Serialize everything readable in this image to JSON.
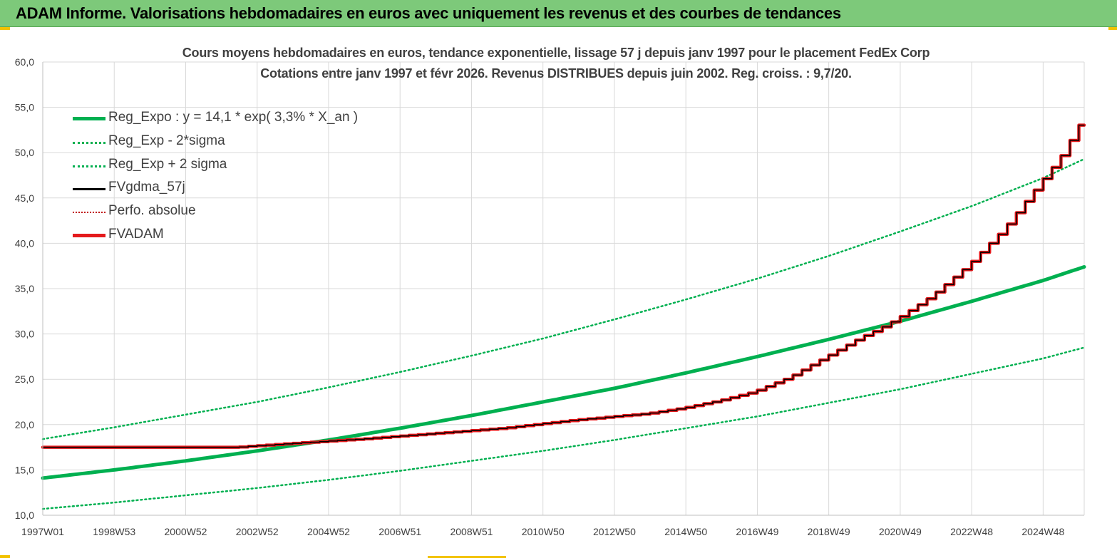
{
  "header": {
    "title": "ADAM Informe. Valorisations hebdomadaires en euros avec uniquement les revenus et des courbes de tendances"
  },
  "colors": {
    "banner_bg": "#7dc97a",
    "reg_expo": "#00b050",
    "fvadam": "#e41a1c",
    "fvgdma": "#000000",
    "perfo": "#c00000",
    "grid": "#d9d9d9",
    "accent": "#f2c200"
  },
  "chart_data": {
    "type": "line",
    "title_line1": "Cours moyens hebdomadaires en euros, tendance exponentielle, lissage 57 j depuis janv 1997 pour le placement FedEx Corp",
    "title_line2": "Cotations entre janv 1997 et févr 2026. Revenus DISTRIBUES depuis juin 2002. Reg. croiss. : 9,7/20.",
    "xlabel": "",
    "ylabel": "",
    "ylim": [
      10,
      60
    ],
    "y_ticks": [
      "10,0",
      "15,0",
      "20,0",
      "25,0",
      "30,0",
      "35,0",
      "40,0",
      "45,0",
      "50,0",
      "55,0",
      "60,0"
    ],
    "x_range": [
      1997.0,
      2026.15
    ],
    "x_ticks": [
      {
        "label": "1997W01",
        "x": 1997.0
      },
      {
        "label": "1998W53",
        "x": 1999.0
      },
      {
        "label": "2000W52",
        "x": 2001.0
      },
      {
        "label": "2002W52",
        "x": 2003.0
      },
      {
        "label": "2004W52",
        "x": 2005.0
      },
      {
        "label": "2006W51",
        "x": 2007.0
      },
      {
        "label": "2008W51",
        "x": 2009.0
      },
      {
        "label": "2010W50",
        "x": 2011.0
      },
      {
        "label": "2012W50",
        "x": 2013.0
      },
      {
        "label": "2014W50",
        "x": 2015.0
      },
      {
        "label": "2016W49",
        "x": 2017.0
      },
      {
        "label": "2018W49",
        "x": 2019.0
      },
      {
        "label": "2020W49",
        "x": 2021.0
      },
      {
        "label": "2022W48",
        "x": 2023.0
      },
      {
        "label": "2024W48",
        "x": 2025.0
      }
    ],
    "grid": true,
    "legend_position": "top-left",
    "series": [
      {
        "name": "Reg_Expo : y = 14,1 * exp( 3,3% *  X_an )",
        "style": "solid-thick",
        "x": [
          1997.0,
          1999.0,
          2001.0,
          2003.0,
          2005.0,
          2007.0,
          2009.0,
          2011.0,
          2013.0,
          2015.0,
          2017.0,
          2019.0,
          2021.0,
          2023.0,
          2025.0,
          2026.15
        ],
        "y": [
          14.1,
          15.0,
          16.0,
          17.1,
          18.3,
          19.6,
          21.0,
          22.5,
          24.0,
          25.7,
          27.5,
          29.4,
          31.4,
          33.6,
          35.9,
          37.4
        ]
      },
      {
        "name": "Reg_Exp - 2*sigma",
        "style": "dotted",
        "x": [
          1997.0,
          1999.0,
          2001.0,
          2003.0,
          2005.0,
          2007.0,
          2009.0,
          2011.0,
          2013.0,
          2015.0,
          2017.0,
          2019.0,
          2021.0,
          2023.0,
          2025.0,
          2026.15
        ],
        "y": [
          10.7,
          11.4,
          12.2,
          13.0,
          13.9,
          14.9,
          16.0,
          17.1,
          18.3,
          19.6,
          20.9,
          22.4,
          23.9,
          25.6,
          27.3,
          28.5
        ]
      },
      {
        "name": "Reg_Exp + 2 sigma",
        "style": "dotted",
        "x": [
          1997.0,
          1999.0,
          2001.0,
          2003.0,
          2005.0,
          2007.0,
          2009.0,
          2011.0,
          2013.0,
          2015.0,
          2017.0,
          2019.0,
          2021.0,
          2023.0,
          2025.0,
          2026.15
        ],
        "y": [
          18.4,
          19.7,
          21.1,
          22.5,
          24.1,
          25.8,
          27.6,
          29.5,
          31.6,
          33.8,
          36.1,
          38.6,
          41.3,
          44.1,
          47.2,
          49.3
        ]
      },
      {
        "name": "FVgdma_57j",
        "style": "solid-thin",
        "x": [
          1997.0,
          2002.5,
          2004.0,
          2006.0,
          2008.0,
          2010.0,
          2012.0,
          2014.0,
          2015.0,
          2016.0,
          2017.0,
          2018.0,
          2019.0,
          2020.0,
          2020.5,
          2021.0,
          2022.0,
          2023.0,
          2024.0,
          2025.0,
          2025.6,
          2026.15
        ],
        "y": [
          17.5,
          17.5,
          17.9,
          18.4,
          19.0,
          19.6,
          20.5,
          21.2,
          21.8,
          22.6,
          23.6,
          25.2,
          27.4,
          29.6,
          30.5,
          31.6,
          34.2,
          37.5,
          41.5,
          46.5,
          49.5,
          53.2
        ]
      },
      {
        "name": "Perfo. absolue",
        "style": "dotted",
        "x": [],
        "y": []
      },
      {
        "name": "FVADAM",
        "style": "solid-thick-step",
        "x": [
          1997.0,
          2002.5,
          2004.0,
          2006.0,
          2008.0,
          2010.0,
          2012.0,
          2014.0,
          2015.0,
          2016.0,
          2017.0,
          2018.0,
          2019.0,
          2020.0,
          2020.5,
          2021.0,
          2022.0,
          2023.0,
          2024.0,
          2025.0,
          2025.6,
          2026.15
        ],
        "y": [
          17.5,
          17.5,
          17.9,
          18.4,
          19.0,
          19.6,
          20.5,
          21.2,
          21.8,
          22.6,
          23.6,
          25.2,
          27.4,
          29.6,
          30.5,
          31.6,
          34.2,
          37.5,
          41.5,
          46.5,
          49.5,
          53.2
        ]
      }
    ]
  }
}
